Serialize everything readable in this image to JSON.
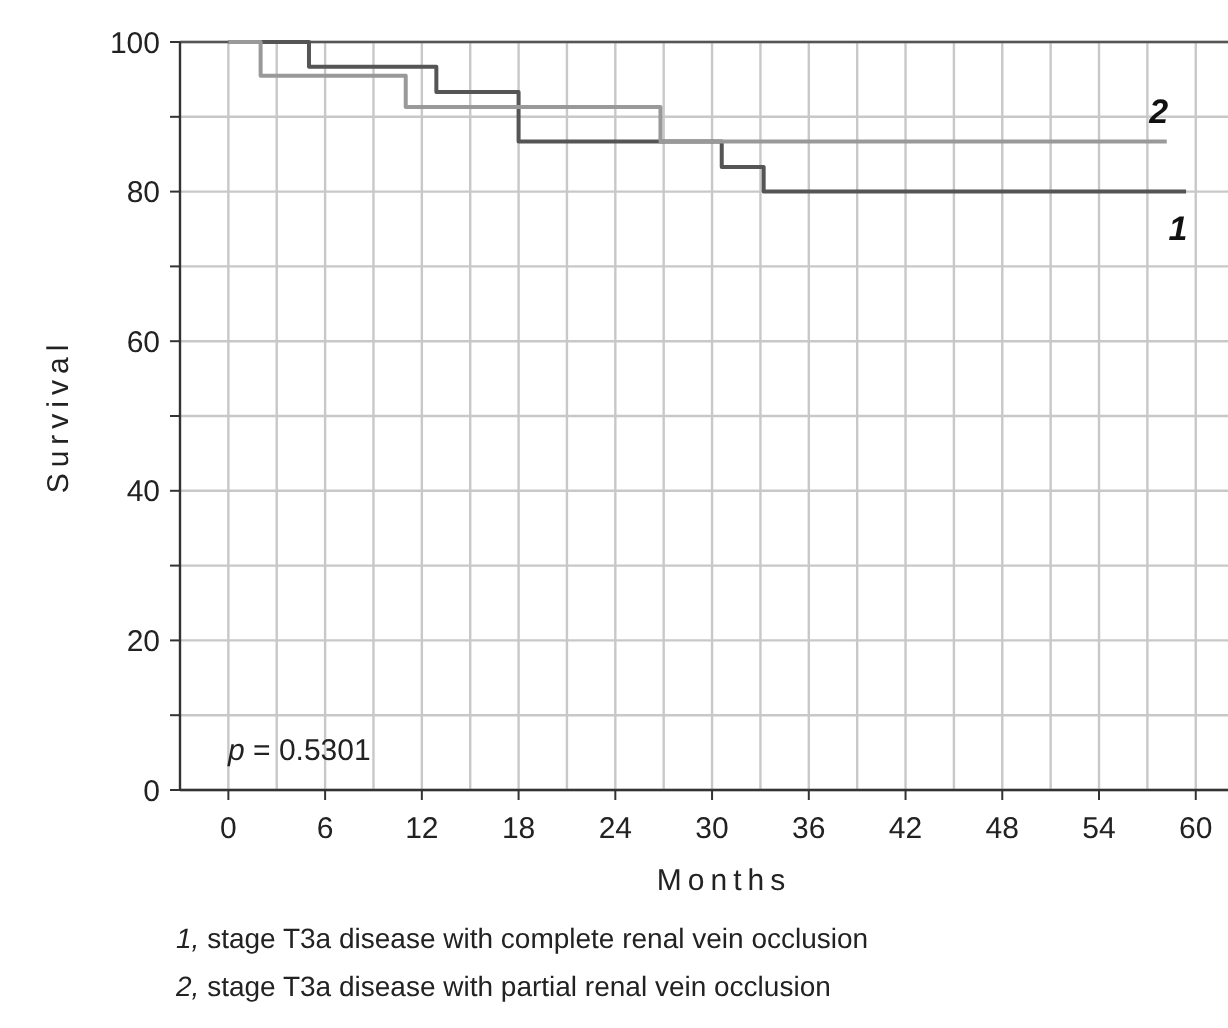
{
  "chart_data": {
    "type": "step",
    "xlabel": "Months",
    "ylabel": "Survival",
    "xlim": [
      -3,
      62
    ],
    "ylim": [
      0,
      100
    ],
    "xticks": [
      0,
      {
        "value": 3,
        "label": null
      },
      6,
      {
        "value": 9,
        "label": null
      },
      12,
      {
        "value": 15,
        "label": null
      },
      18,
      {
        "value": 21,
        "label": null
      },
      24,
      {
        "value": 27,
        "label": null
      },
      30,
      {
        "value": 33,
        "label": null
      },
      36,
      {
        "value": 39,
        "label": null
      },
      42,
      {
        "value": 45,
        "label": null
      },
      48,
      {
        "value": 51,
        "label": null
      },
      54,
      {
        "value": 57,
        "label": null
      },
      60
    ],
    "yticks": [
      0,
      {
        "value": 10,
        "label": null
      },
      20,
      {
        "value": 30,
        "label": null
      },
      40,
      {
        "value": 50,
        "label": null
      },
      60,
      {
        "value": 70,
        "label": null
      },
      80,
      {
        "value": 90,
        "label": null
      },
      100
    ],
    "grid": true,
    "marker": "none",
    "line_style": "solid",
    "series": [
      {
        "name": "1",
        "color": "#555555",
        "x": [
          0,
          5,
          12.9,
          18,
          30.6,
          33.2,
          59.4
        ],
        "values": [
          100,
          96.7,
          93.3,
          86.7,
          83.3,
          80,
          80
        ]
      },
      {
        "name": "2",
        "color": "#999999",
        "x": [
          0,
          2,
          11,
          26.8,
          58.2
        ],
        "values": [
          100,
          95.5,
          91.3,
          86.7,
          86.7
        ]
      }
    ],
    "annotations": [
      "p = 0.5301",
      "1, stage T3a disease with complete renal vein occlusion",
      "2, stage T3a disease with partial renal vein occlusion"
    ]
  }
}
